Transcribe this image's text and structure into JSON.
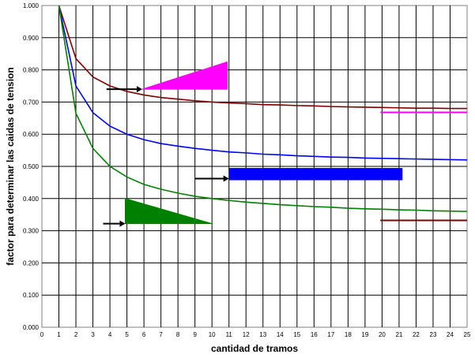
{
  "chart_data": {
    "type": "line",
    "title": "",
    "xlabel": "cantidad de tramos",
    "ylabel": "factor para determinar las caidas de tension",
    "xlim": [
      0,
      25
    ],
    "ylim": [
      0,
      1
    ],
    "x_ticks": [
      "0",
      "1",
      "2",
      "3",
      "4",
      "5",
      "6",
      "7",
      "8",
      "9",
      "10",
      "11",
      "12",
      "13",
      "14",
      "15",
      "16",
      "17",
      "18",
      "19",
      "20",
      "21",
      "22",
      "23",
      "24",
      "25"
    ],
    "y_ticks": [
      "0.000",
      "0.100",
      "0.200",
      "0.300",
      "0.400",
      "0.500",
      "0.600",
      "0.700",
      "0.800",
      "0.900",
      "1.000"
    ],
    "grid": true,
    "legend": "none",
    "x": [
      1,
      2,
      3,
      4,
      5,
      6,
      7,
      8,
      9,
      10,
      11,
      12,
      13,
      14,
      15,
      16,
      17,
      18,
      19,
      20,
      21,
      22,
      23,
      24,
      25
    ],
    "series": [
      {
        "color": "#800000",
        "values": [
          1.0,
          0.835,
          0.778,
          0.75,
          0.733,
          0.722,
          0.714,
          0.709,
          0.704,
          0.7,
          0.697,
          0.695,
          0.692,
          0.691,
          0.689,
          0.688,
          0.686,
          0.685,
          0.684,
          0.683,
          0.682,
          0.681,
          0.681,
          0.68,
          0.68
        ]
      },
      {
        "color": "#0000FF",
        "values": [
          1.0,
          0.75,
          0.667,
          0.625,
          0.6,
          0.583,
          0.571,
          0.563,
          0.556,
          0.55,
          0.545,
          0.542,
          0.538,
          0.536,
          0.533,
          0.531,
          0.529,
          0.528,
          0.526,
          0.525,
          0.524,
          0.523,
          0.522,
          0.521,
          0.52
        ]
      },
      {
        "color": "#008000",
        "values": [
          1.0,
          0.665,
          0.556,
          0.5,
          0.467,
          0.444,
          0.429,
          0.417,
          0.407,
          0.4,
          0.394,
          0.389,
          0.385,
          0.381,
          0.378,
          0.375,
          0.373,
          0.37,
          0.368,
          0.367,
          0.365,
          0.364,
          0.362,
          0.361,
          0.36
        ]
      }
    ],
    "annotations": [
      {
        "shape": "triangle",
        "color": "#FF00FF",
        "points": [
          [
            5.9,
            0.74
          ],
          [
            10.9,
            0.825
          ],
          [
            10.9,
            0.74
          ]
        ]
      },
      {
        "shape": "rectangle",
        "color": "#0000FF",
        "x": [
          11.0,
          21.2
        ],
        "y": [
          0.457,
          0.495
        ]
      },
      {
        "shape": "triangle",
        "color": "#008000",
        "points": [
          [
            4.9,
            0.4
          ],
          [
            4.9,
            0.322
          ],
          [
            10.0,
            0.322
          ]
        ]
      },
      {
        "shape": "arrow",
        "color": "#000000",
        "from": [
          3.8,
          0.74
        ],
        "to": [
          5.9,
          0.74
        ]
      },
      {
        "shape": "arrow",
        "color": "#000000",
        "from": [
          9.0,
          0.462
        ],
        "to": [
          11.0,
          0.462
        ]
      },
      {
        "shape": "arrow",
        "color": "#000000",
        "from": [
          3.6,
          0.322
        ],
        "to": [
          4.9,
          0.322
        ]
      },
      {
        "shape": "hline",
        "color": "#FF00FF",
        "x": [
          19.9,
          25.0
        ],
        "y": 0.668
      },
      {
        "shape": "hline",
        "color": "#800000",
        "x": [
          19.9,
          25.0
        ],
        "y": 0.332
      }
    ]
  }
}
